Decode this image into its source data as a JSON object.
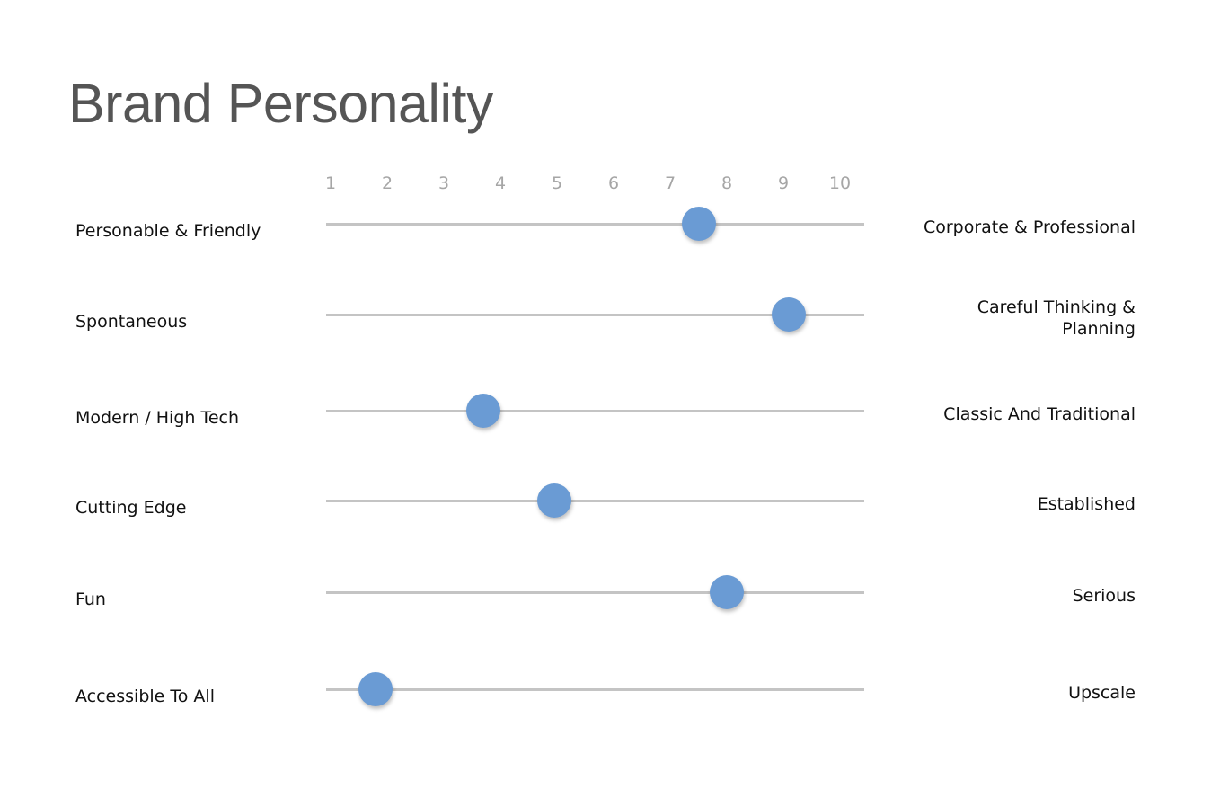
{
  "title": "Brand Personality",
  "chart_data": {
    "type": "scatter",
    "scale": {
      "min": 1,
      "max": 10,
      "ticks": [
        "1",
        "2",
        "3",
        "4",
        "5",
        "6",
        "7",
        "8",
        "9",
        "10"
      ]
    },
    "accent_color": "#6a9bd4",
    "track_color": "#c4c4c4",
    "rows": [
      {
        "left": "Personable & Friendly",
        "right": [
          "Corporate & Professional"
        ],
        "value": 7.5
      },
      {
        "left": "Spontaneous",
        "right": [
          "Careful Thinking &",
          "Planning"
        ],
        "value": 9.1
      },
      {
        "left": "Modern / High Tech",
        "right": [
          "Classic And Traditional"
        ],
        "value": 3.7
      },
      {
        "left": "Cutting Edge",
        "right": [
          "Established"
        ],
        "value": 4.95
      },
      {
        "left": "Fun",
        "right": [
          "Serious"
        ],
        "value": 8.0
      },
      {
        "left": "Accessible To All",
        "right": [
          "Upscale"
        ],
        "value": 1.8
      }
    ]
  }
}
